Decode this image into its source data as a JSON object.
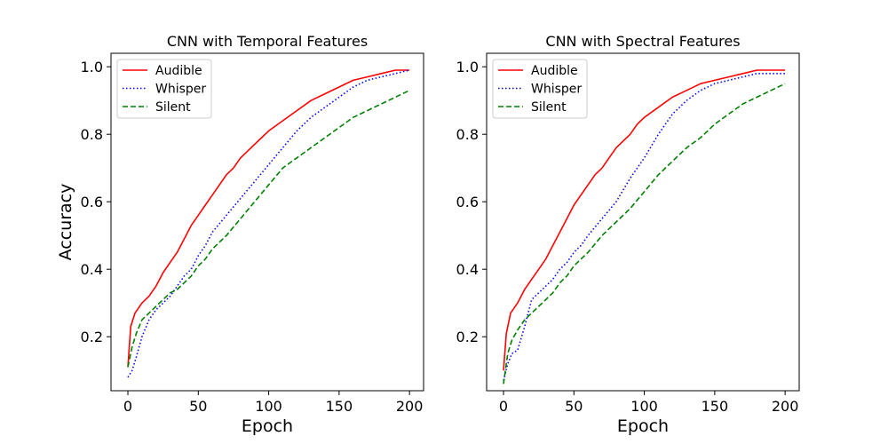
{
  "figure": {
    "background": "#ffffff"
  },
  "chart_data": [
    {
      "type": "line",
      "title": "CNN with Temporal Features",
      "xlabel": "Epoch",
      "ylabel": "Accuracy",
      "xlim": [
        -12,
        210
      ],
      "ylim": [
        0.04,
        1.04
      ],
      "xticks": [
        0,
        50,
        100,
        150,
        200
      ],
      "yticks": [
        0.2,
        0.4,
        0.6,
        0.8,
        1.0
      ],
      "legend_position": "upper-left",
      "series": [
        {
          "name": "Audible",
          "color": "#ff0000",
          "dash": "solid",
          "x": [
            0,
            2,
            5,
            10,
            15,
            20,
            25,
            30,
            35,
            40,
            45,
            50,
            55,
            60,
            65,
            70,
            75,
            80,
            85,
            90,
            95,
            100,
            110,
            120,
            130,
            140,
            150,
            160,
            170,
            180,
            190,
            200
          ],
          "y": [
            0.11,
            0.23,
            0.27,
            0.3,
            0.32,
            0.35,
            0.39,
            0.42,
            0.45,
            0.49,
            0.53,
            0.56,
            0.59,
            0.62,
            0.65,
            0.68,
            0.7,
            0.73,
            0.75,
            0.77,
            0.79,
            0.81,
            0.84,
            0.87,
            0.9,
            0.92,
            0.94,
            0.96,
            0.97,
            0.98,
            0.99,
            0.99
          ]
        },
        {
          "name": "Whisper",
          "color": "#0000ff",
          "dash": "dotted",
          "x": [
            0,
            3,
            6,
            10,
            15,
            20,
            25,
            30,
            35,
            40,
            45,
            50,
            55,
            60,
            70,
            80,
            90,
            100,
            110,
            120,
            130,
            140,
            150,
            160,
            170,
            180,
            190,
            200
          ],
          "y": [
            0.08,
            0.1,
            0.14,
            0.2,
            0.25,
            0.28,
            0.3,
            0.32,
            0.35,
            0.38,
            0.4,
            0.44,
            0.47,
            0.51,
            0.56,
            0.61,
            0.66,
            0.71,
            0.76,
            0.81,
            0.85,
            0.88,
            0.91,
            0.94,
            0.96,
            0.97,
            0.98,
            0.99
          ]
        },
        {
          "name": "Silent",
          "color": "#008000",
          "dash": "dashed",
          "x": [
            0,
            3,
            6,
            10,
            15,
            20,
            25,
            30,
            35,
            40,
            45,
            50,
            55,
            60,
            70,
            80,
            90,
            100,
            110,
            120,
            130,
            140,
            150,
            160,
            170,
            180,
            190,
            200
          ],
          "y": [
            0.11,
            0.17,
            0.21,
            0.25,
            0.27,
            0.29,
            0.31,
            0.33,
            0.34,
            0.36,
            0.38,
            0.41,
            0.43,
            0.46,
            0.5,
            0.55,
            0.6,
            0.65,
            0.7,
            0.73,
            0.76,
            0.79,
            0.82,
            0.85,
            0.87,
            0.89,
            0.91,
            0.93
          ]
        }
      ]
    },
    {
      "type": "line",
      "title": "CNN with Spectral Features",
      "xlabel": "Epoch",
      "ylabel": "",
      "xlim": [
        -12,
        210
      ],
      "ylim": [
        0.04,
        1.04
      ],
      "xticks": [
        0,
        50,
        100,
        150,
        200
      ],
      "yticks": [
        0.2,
        0.4,
        0.6,
        0.8,
        1.0
      ],
      "legend_position": "upper-left",
      "series": [
        {
          "name": "Audible",
          "color": "#ff0000",
          "dash": "solid",
          "x": [
            0,
            2,
            5,
            10,
            15,
            20,
            25,
            30,
            35,
            40,
            45,
            50,
            55,
            60,
            65,
            70,
            75,
            80,
            85,
            90,
            95,
            100,
            110,
            120,
            130,
            140,
            150,
            160,
            170,
            180,
            190,
            200
          ],
          "y": [
            0.1,
            0.21,
            0.27,
            0.3,
            0.34,
            0.37,
            0.4,
            0.43,
            0.47,
            0.51,
            0.55,
            0.59,
            0.62,
            0.65,
            0.68,
            0.7,
            0.73,
            0.76,
            0.78,
            0.8,
            0.83,
            0.85,
            0.88,
            0.91,
            0.93,
            0.95,
            0.96,
            0.97,
            0.98,
            0.99,
            0.99,
            0.99
          ]
        },
        {
          "name": "Whisper",
          "color": "#0000ff",
          "dash": "dotted",
          "x": [
            0,
            3,
            6,
            10,
            15,
            20,
            25,
            30,
            35,
            40,
            45,
            50,
            55,
            60,
            70,
            80,
            90,
            100,
            110,
            120,
            130,
            140,
            150,
            160,
            170,
            180,
            190,
            200
          ],
          "y": [
            0.07,
            0.12,
            0.15,
            0.16,
            0.23,
            0.31,
            0.33,
            0.35,
            0.37,
            0.4,
            0.42,
            0.45,
            0.47,
            0.5,
            0.55,
            0.6,
            0.67,
            0.73,
            0.8,
            0.86,
            0.9,
            0.93,
            0.95,
            0.96,
            0.97,
            0.98,
            0.98,
            0.98
          ]
        },
        {
          "name": "Silent",
          "color": "#008000",
          "dash": "dashed",
          "x": [
            0,
            3,
            6,
            10,
            15,
            20,
            25,
            30,
            35,
            40,
            45,
            50,
            55,
            60,
            70,
            80,
            90,
            100,
            110,
            120,
            130,
            140,
            150,
            160,
            170,
            180,
            190,
            200
          ],
          "y": [
            0.06,
            0.15,
            0.19,
            0.22,
            0.25,
            0.27,
            0.29,
            0.31,
            0.33,
            0.36,
            0.38,
            0.41,
            0.43,
            0.45,
            0.5,
            0.54,
            0.58,
            0.63,
            0.68,
            0.72,
            0.76,
            0.79,
            0.83,
            0.86,
            0.89,
            0.91,
            0.93,
            0.95
          ]
        }
      ]
    }
  ]
}
